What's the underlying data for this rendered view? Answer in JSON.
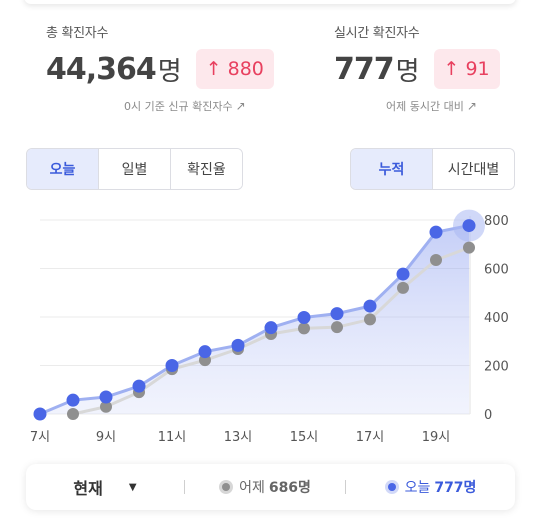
{
  "summary": {
    "total": {
      "label": "총 확진자수",
      "value": "44,364",
      "unit": "명",
      "delta": "880",
      "note": "0시 기준 신규 확진자수"
    },
    "realtime": {
      "label": "실시간 확진자수",
      "value": "777",
      "unit": "명",
      "delta": "91",
      "note": "어제 동시간 대비"
    }
  },
  "tabs_left": [
    "오늘",
    "일별",
    "확진율"
  ],
  "tabs_left_active": 0,
  "tabs_right": [
    "누적",
    "시간대별"
  ],
  "tabs_right_active": 0,
  "colors": {
    "today": "#4a66e6",
    "yesterday": "#8f8f8f",
    "delta": "#e8405f",
    "accent": "#3b5bdb"
  },
  "chart_data": {
    "type": "line",
    "x": [
      7,
      8,
      9,
      10,
      11,
      12,
      13,
      14,
      15,
      16,
      17,
      18,
      19,
      20
    ],
    "x_tick_labels": [
      "7시",
      "9시",
      "11시",
      "13시",
      "15시",
      "17시",
      "19시"
    ],
    "y_ticks": [
      0,
      200,
      400,
      600,
      800
    ],
    "ylim": [
      0,
      800
    ],
    "grid": true,
    "y_axis_side": "right",
    "series": [
      {
        "name": "오늘",
        "values": [
          0,
          57,
          70,
          115,
          200,
          257,
          283,
          356,
          398,
          414,
          445,
          577,
          750,
          777
        ]
      },
      {
        "values": [
          null,
          0,
          30,
          90,
          185,
          222,
          268,
          330,
          353,
          358,
          390,
          520,
          635,
          686
        ]
      }
    ]
  },
  "footer": {
    "select_label": "현재",
    "yesterday_label": "어제",
    "yesterday_value": "686명",
    "today_label": "오늘",
    "today_value": "777명"
  }
}
